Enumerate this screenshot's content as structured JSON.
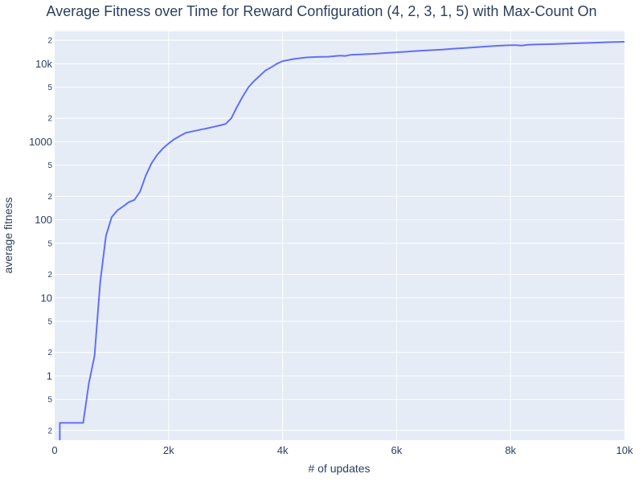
{
  "chart_data": {
    "type": "line",
    "title": "Average Fitness over Time for Reward Configuration (4, 2, 3, 1, 5) with Max-Count On",
    "xlabel": "# of updates",
    "ylabel": "average fitness",
    "xlim": [
      0,
      10000
    ],
    "ylim": [
      0.15,
      26000
    ],
    "y_scale": "log",
    "grid": true,
    "colors": {
      "line": "#636efa",
      "plot_bg": "#e5ecf6",
      "grid": "#ffffff"
    },
    "x_ticks": [
      {
        "value": 0,
        "label": "0"
      },
      {
        "value": 2000,
        "label": "2k"
      },
      {
        "value": 4000,
        "label": "4k"
      },
      {
        "value": 6000,
        "label": "6k"
      },
      {
        "value": 8000,
        "label": "8k"
      },
      {
        "value": 10000,
        "label": "10k"
      }
    ],
    "y_major_ticks": [
      {
        "value": 1,
        "label": "1"
      },
      {
        "value": 10,
        "label": "10"
      },
      {
        "value": 100,
        "label": "100"
      },
      {
        "value": 1000,
        "label": "1000"
      },
      {
        "value": 10000,
        "label": "10k"
      }
    ],
    "y_minor_ticks": [
      {
        "value": 0.2,
        "label": "2"
      },
      {
        "value": 0.5,
        "label": "5"
      },
      {
        "value": 2,
        "label": "2"
      },
      {
        "value": 5,
        "label": "5"
      },
      {
        "value": 20,
        "label": "2"
      },
      {
        "value": 50,
        "label": "5"
      },
      {
        "value": 200,
        "label": "2"
      },
      {
        "value": 500,
        "label": "5"
      },
      {
        "value": 2000,
        "label": "2"
      },
      {
        "value": 5000,
        "label": "5"
      },
      {
        "value": 20000,
        "label": "2"
      }
    ],
    "series": [
      {
        "x": [
          90,
          90,
          100,
          200,
          300,
          400,
          500,
          600,
          700,
          800,
          900,
          1000,
          1100,
          1200,
          1300,
          1400,
          1500,
          1600,
          1700,
          1800,
          1900,
          2000,
          2100,
          2200,
          2300,
          2400,
          2500,
          2600,
          2700,
          2800,
          2900,
          3000,
          3100,
          3200,
          3300,
          3400,
          3500,
          3600,
          3700,
          3800,
          3900,
          4000,
          4200,
          4400,
          4600,
          4800,
          5000,
          5100,
          5200,
          5400,
          5600,
          5800,
          6000,
          6200,
          6400,
          6600,
          6800,
          7000,
          7200,
          7400,
          7600,
          7800,
          8000,
          8100,
          8200,
          8300,
          8500,
          8700,
          9000,
          9200,
          9500,
          9700,
          10000
        ],
        "y": [
          0.15,
          0.25,
          0.25,
          0.25,
          0.25,
          0.25,
          0.25,
          0.8,
          1.8,
          16,
          62,
          108,
          132,
          148,
          168,
          180,
          230,
          370,
          530,
          680,
          820,
          950,
          1080,
          1190,
          1300,
          1350,
          1400,
          1450,
          1500,
          1560,
          1620,
          1690,
          2000,
          2800,
          3800,
          5000,
          6000,
          7000,
          8200,
          9000,
          10000,
          10800,
          11500,
          12000,
          12200,
          12300,
          12700,
          12600,
          13000,
          13200,
          13400,
          13700,
          14000,
          14300,
          14600,
          14900,
          15200,
          15600,
          15900,
          16300,
          16700,
          17000,
          17300,
          17300,
          17100,
          17500,
          17700,
          17800,
          18100,
          18300,
          18600,
          18900,
          19100
        ]
      }
    ]
  }
}
